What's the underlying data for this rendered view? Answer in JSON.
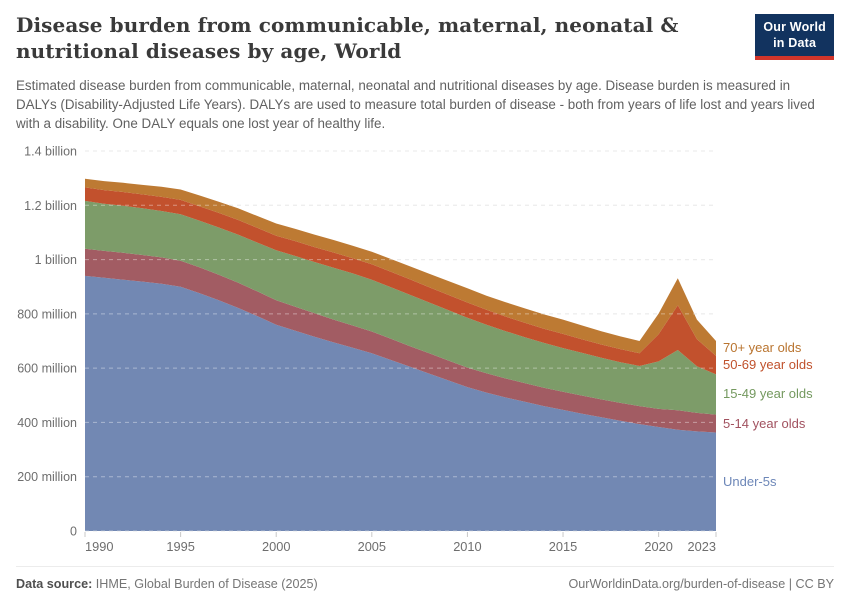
{
  "header": {
    "title": "Disease burden from communicable, maternal, neonatal & nutritional diseases by age, World",
    "subtitle": "Estimated disease burden from communicable, maternal, neonatal and nutritional diseases by age. Disease burden is measured in DALYs (Disability-Adjusted Life Years). DALYs are used to measure total burden of disease - both from years of life lost and years lived with a disability. One DALY equals one lost year of healthy life.",
    "logo": {
      "line1": "Our World",
      "line2": "in Data",
      "bg": "#12335f",
      "accent": "#d1352b"
    }
  },
  "chart_data": {
    "type": "area",
    "stacked": true,
    "title": "Disease burden from communicable, maternal, neonatal & nutritional diseases by age, World",
    "values_unit": "million DALYs",
    "ylim": [
      0,
      1400
    ],
    "grid": "dashed-horizontal",
    "legend_position": "right",
    "x": [
      1990,
      1991,
      1992,
      1993,
      1994,
      1995,
      1996,
      1997,
      1998,
      1999,
      2000,
      2001,
      2002,
      2003,
      2004,
      2005,
      2006,
      2007,
      2008,
      2009,
      2010,
      2011,
      2012,
      2013,
      2014,
      2015,
      2016,
      2017,
      2018,
      2019,
      2020,
      2021,
      2022,
      2023
    ],
    "series": [
      {
        "name": "Under-5s",
        "color": "#7288b3",
        "label_color": "#6d87b8",
        "values": [
          940,
          933,
          926,
          919,
          911,
          900,
          876,
          850,
          822,
          792,
          760,
          738,
          716,
          695,
          675,
          655,
          630,
          605,
          580,
          555,
          530,
          510,
          492,
          476,
          460,
          446,
          432,
          419,
          406,
          394,
          383,
          373,
          367,
          363
        ]
      },
      {
        "name": "5-14 year olds",
        "color": "#a25c63",
        "label_color": "#a1515f",
        "values": [
          100,
          99,
          99,
          98,
          97,
          96,
          95,
          94,
          93,
          91,
          90,
          88,
          86,
          84,
          82,
          80,
          78,
          76,
          75,
          73,
          72,
          71,
          70,
          69,
          68,
          67,
          67,
          66,
          66,
          66,
          67,
          72,
          68,
          66
        ]
      },
      {
        "name": "15-49 year olds",
        "color": "#7d9c69",
        "label_color": "#74995f",
        "values": [
          176,
          174,
          173,
          172,
          171,
          171,
          172,
          174,
          177,
          180,
          184,
          187,
          189,
          191,
          192,
          191,
          190,
          189,
          187,
          186,
          184,
          179,
          174,
          169,
          165,
          161,
          157,
          153,
          150,
          148,
          175,
          222,
          172,
          148
        ]
      },
      {
        "name": "50-69 year olds",
        "color": "#c2512d",
        "label_color": "#c0512c",
        "values": [
          50,
          50,
          51,
          51,
          52,
          53,
          53,
          54,
          54,
          54,
          54,
          55,
          55,
          56,
          56,
          57,
          57,
          57,
          56,
          56,
          56,
          55,
          54,
          53,
          52,
          52,
          50,
          49,
          48,
          47,
          100,
          165,
          100,
          68
        ]
      },
      {
        "name": "70+ year olds",
        "color": "#bd7a33",
        "label_color": "#b9742f",
        "values": [
          32,
          33,
          34,
          35,
          37,
          38,
          40,
          41,
          43,
          44,
          45,
          45,
          46,
          46,
          46,
          46,
          47,
          48,
          50,
          51,
          52,
          52,
          53,
          53,
          53,
          53,
          51,
          49,
          47,
          45,
          76,
          99,
          72,
          55
        ]
      }
    ],
    "yticks": [
      {
        "v": 0,
        "label": "0"
      },
      {
        "v": 200,
        "label": "200 million"
      },
      {
        "v": 400,
        "label": "400 million"
      },
      {
        "v": 600,
        "label": "600 million"
      },
      {
        "v": 800,
        "label": "800 million"
      },
      {
        "v": 1000,
        "label": "1 billion"
      },
      {
        "v": 1200,
        "label": "1.2 billion"
      },
      {
        "v": 1400,
        "label": "1.4 billion"
      }
    ],
    "xticks": [
      {
        "v": 1990,
        "label": "1990"
      },
      {
        "v": 1995,
        "label": "1995"
      },
      {
        "v": 2000,
        "label": "2000"
      },
      {
        "v": 2005,
        "label": "2005"
      },
      {
        "v": 2010,
        "label": "2010"
      },
      {
        "v": 2015,
        "label": "2015"
      },
      {
        "v": 2020,
        "label": "2020"
      },
      {
        "v": 2023,
        "label": "2023"
      }
    ]
  },
  "footer": {
    "source_label": "Data source:",
    "source_value": "IHME, Global Burden of Disease (2025)",
    "credit": "OurWorldinData.org/burden-of-disease | CC BY"
  }
}
